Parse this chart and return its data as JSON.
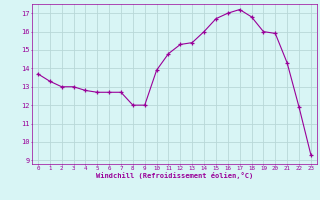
{
  "x": [
    0,
    1,
    2,
    3,
    4,
    5,
    6,
    7,
    8,
    9,
    10,
    11,
    12,
    13,
    14,
    15,
    16,
    17,
    18,
    19,
    20,
    21,
    22,
    23
  ],
  "y": [
    13.7,
    13.3,
    13.0,
    13.0,
    12.8,
    12.7,
    12.7,
    12.7,
    12.0,
    12.0,
    13.9,
    14.8,
    15.3,
    15.4,
    16.0,
    16.7,
    17.0,
    17.2,
    16.8,
    16.0,
    15.9,
    14.3,
    11.9,
    9.3
  ],
  "line_color": "#990099",
  "marker": "+",
  "marker_size": 3,
  "bg_color": "#d8f5f5",
  "grid_color": "#b8d8d8",
  "xlabel": "Windchill (Refroidissement éolien,°C)",
  "xlabel_color": "#990099",
  "tick_color": "#990099",
  "ylim": [
    8.8,
    17.5
  ],
  "xlim": [
    -0.5,
    23.5
  ],
  "yticks": [
    9,
    10,
    11,
    12,
    13,
    14,
    15,
    16,
    17
  ],
  "xticks": [
    0,
    1,
    2,
    3,
    4,
    5,
    6,
    7,
    8,
    9,
    10,
    11,
    12,
    13,
    14,
    15,
    16,
    17,
    18,
    19,
    20,
    21,
    22,
    23
  ]
}
